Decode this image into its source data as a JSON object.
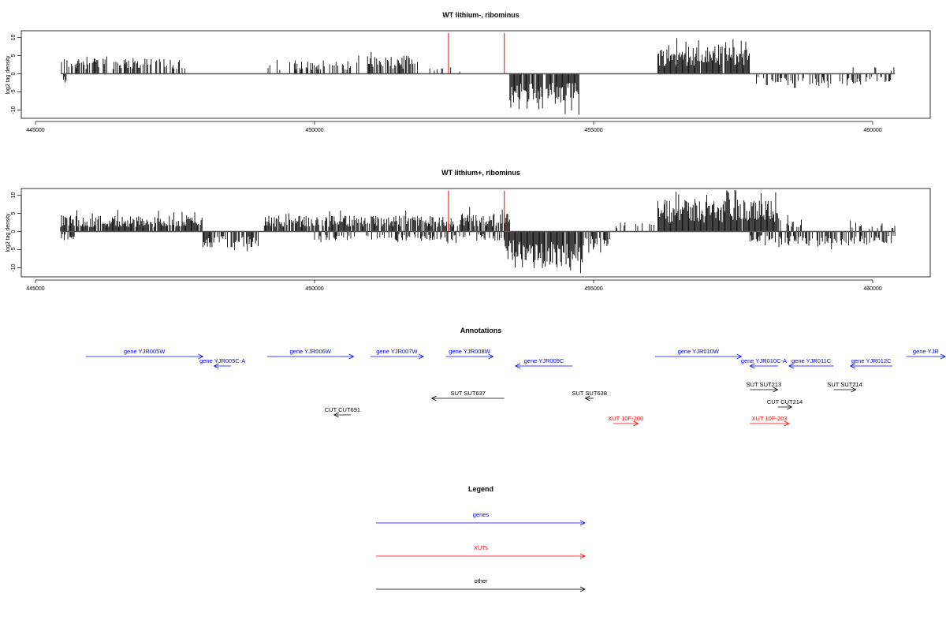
{
  "chart_data": [
    {
      "type": "bar",
      "title": "WT lithium-, ribominus",
      "ylabel": "log2 tag density",
      "xlim": [
        445000,
        461000
      ],
      "ylim": [
        -12,
        12
      ],
      "xticks": [
        "445000",
        "450000",
        "455000",
        "460000"
      ],
      "xtick_values": [
        445000,
        450000,
        455000,
        460000
      ],
      "yticks": [
        "10",
        "5",
        "0",
        "-5",
        "-10"
      ],
      "ytick_values": [
        10,
        5,
        0,
        -5,
        -10
      ],
      "baseline_range": [
        445450,
        460400
      ],
      "red_markers": [
        452400,
        453400
      ],
      "segments_pos": [
        {
          "x0": 445450,
          "x1": 447700,
          "y": 3.5,
          "density": 0.55
        },
        {
          "x0": 449150,
          "x1": 450900,
          "y": 3.0,
          "density": 0.45
        },
        {
          "x0": 450950,
          "x1": 451850,
          "y": 4.0,
          "density": 0.8
        },
        {
          "x0": 452000,
          "x1": 452700,
          "y": 1.5,
          "density": 0.15
        },
        {
          "x0": 456150,
          "x1": 457800,
          "y": 6.0,
          "density": 0.95
        },
        {
          "x0": 459600,
          "x1": 460400,
          "y": 1.5,
          "density": 0.1
        }
      ],
      "segments_neg": [
        {
          "x0": 445500,
          "x1": 445550,
          "y": -2.0,
          "density": 1.0
        },
        {
          "x0": 453500,
          "x1": 454100,
          "y": -6.5,
          "density": 0.95
        },
        {
          "x0": 454150,
          "x1": 454750,
          "y": -7.0,
          "density": 0.95
        },
        {
          "x0": 457900,
          "x1": 459800,
          "y": -2.5,
          "density": 0.4
        },
        {
          "x0": 459850,
          "x1": 460400,
          "y": -2.0,
          "density": 0.3
        }
      ]
    },
    {
      "type": "bar",
      "title": "WT lithium+, ribominus",
      "ylabel": "log2 tag density",
      "xlim": [
        445000,
        461000
      ],
      "ylim": [
        -12,
        12
      ],
      "xticks": [
        "445000",
        "450000",
        "455000",
        "460000"
      ],
      "xtick_values": [
        445000,
        450000,
        455000,
        460000
      ],
      "yticks": [
        "10",
        "5",
        "0",
        "-5",
        "-10"
      ],
      "ytick_values": [
        10,
        5,
        0,
        -5,
        -10
      ],
      "baseline_range": [
        445450,
        460400
      ],
      "red_markers": [
        452400,
        453400
      ],
      "segments_pos": [
        {
          "x0": 445450,
          "x1": 448000,
          "y": 3.5,
          "density": 0.9
        },
        {
          "x0": 449100,
          "x1": 452600,
          "y": 3.5,
          "density": 0.85
        },
        {
          "x0": 452600,
          "x1": 453500,
          "y": 4.0,
          "density": 0.9
        },
        {
          "x0": 455400,
          "x1": 456100,
          "y": 2.0,
          "density": 0.25
        },
        {
          "x0": 456150,
          "x1": 458300,
          "y": 7.0,
          "density": 0.98
        },
        {
          "x0": 458300,
          "x1": 458800,
          "y": 3.0,
          "density": 0.6
        },
        {
          "x0": 459600,
          "x1": 460400,
          "y": 2.0,
          "density": 0.3
        }
      ],
      "segments_neg": [
        {
          "x0": 445450,
          "x1": 445700,
          "y": -2.0,
          "density": 0.6
        },
        {
          "x0": 448000,
          "x1": 449000,
          "y": -3.5,
          "density": 0.8
        },
        {
          "x0": 450000,
          "x1": 453400,
          "y": -2.0,
          "density": 0.4
        },
        {
          "x0": 453400,
          "x1": 454100,
          "y": -6.5,
          "density": 0.98
        },
        {
          "x0": 454100,
          "x1": 454800,
          "y": -7.5,
          "density": 0.98
        },
        {
          "x0": 454800,
          "x1": 455300,
          "y": -3.5,
          "density": 0.7
        },
        {
          "x0": 457800,
          "x1": 460400,
          "y": -3.0,
          "density": 0.6
        }
      ]
    }
  ],
  "annotations": {
    "title": "Annotations",
    "features": [
      {
        "label": "gene YJR005W",
        "x0": 445900,
        "x1": 448000,
        "dir": 1,
        "row": 0,
        "color": "#0000ff"
      },
      {
        "label": "gene YJR005C-A",
        "x0": 448200,
        "x1": 448500,
        "dir": -1,
        "row": 1,
        "color": "#0000ff"
      },
      {
        "label": "gene YJR006W",
        "x0": 449150,
        "x1": 450700,
        "dir": 1,
        "row": 0,
        "color": "#0000ff"
      },
      {
        "label": "gene YJR007W",
        "x0": 451000,
        "x1": 451950,
        "dir": 1,
        "row": 0,
        "color": "#0000ff"
      },
      {
        "label": "gene YJR008W",
        "x0": 452350,
        "x1": 453200,
        "dir": 1,
        "row": 0,
        "color": "#0000ff"
      },
      {
        "label": "gene YJR009C",
        "x0": 453600,
        "x1": 454620,
        "dir": -1,
        "row": 1,
        "color": "#0000ff"
      },
      {
        "label": "gene YJR010W",
        "x0": 456100,
        "x1": 457650,
        "dir": 1,
        "row": 0,
        "color": "#0000ff"
      },
      {
        "label": "gene YJR010C-A",
        "x0": 457800,
        "x1": 458300,
        "dir": -1,
        "row": 1,
        "color": "#0000ff"
      },
      {
        "label": "gene YJR011C",
        "x0": 458500,
        "x1": 459300,
        "dir": -1,
        "row": 1,
        "color": "#0000ff"
      },
      {
        "label": "gene YJR012C",
        "x0": 459600,
        "x1": 460350,
        "dir": -1,
        "row": 1,
        "color": "#0000ff"
      },
      {
        "label": "gene YJR",
        "x0": 460600,
        "x1": 461300,
        "dir": 1,
        "row": 0,
        "color": "#0000ff"
      },
      {
        "label": "SUT SUT637",
        "x0": 452100,
        "x1": 453400,
        "dir": -1,
        "row": 2,
        "color": "#000000"
      },
      {
        "label": "SUT SUT638",
        "x0": 454850,
        "x1": 455000,
        "dir": -1,
        "row": 2,
        "color": "#000000"
      },
      {
        "label": "SUT SUT213",
        "x0": 457800,
        "x1": 458300,
        "dir": 1,
        "row": 3,
        "color": "#000000"
      },
      {
        "label": "SUT SUT214",
        "x0": 459300,
        "x1": 459700,
        "dir": 1,
        "row": 3,
        "color": "#000000"
      },
      {
        "label": "CUT CUT214",
        "x0": 458300,
        "x1": 458550,
        "dir": 1,
        "row": 4,
        "color": "#000000"
      },
      {
        "label": "CUT CUT691",
        "x0": 450350,
        "x1": 450650,
        "dir": -1,
        "row": 5,
        "color": "#000000"
      },
      {
        "label": "XUT 10F-200",
        "x0": 455350,
        "x1": 455800,
        "dir": 1,
        "row": 6,
        "color": "#ff0000"
      },
      {
        "label": "XUT 10F-203",
        "x0": 457800,
        "x1": 458500,
        "dir": 1,
        "row": 6,
        "color": "#ff0000"
      }
    ]
  },
  "legend": {
    "title": "Legend",
    "items": [
      {
        "label": "genes",
        "color": "#0000ff"
      },
      {
        "label": "XUTs",
        "color": "#ff0000"
      },
      {
        "label": "other",
        "color": "#000000"
      }
    ]
  }
}
